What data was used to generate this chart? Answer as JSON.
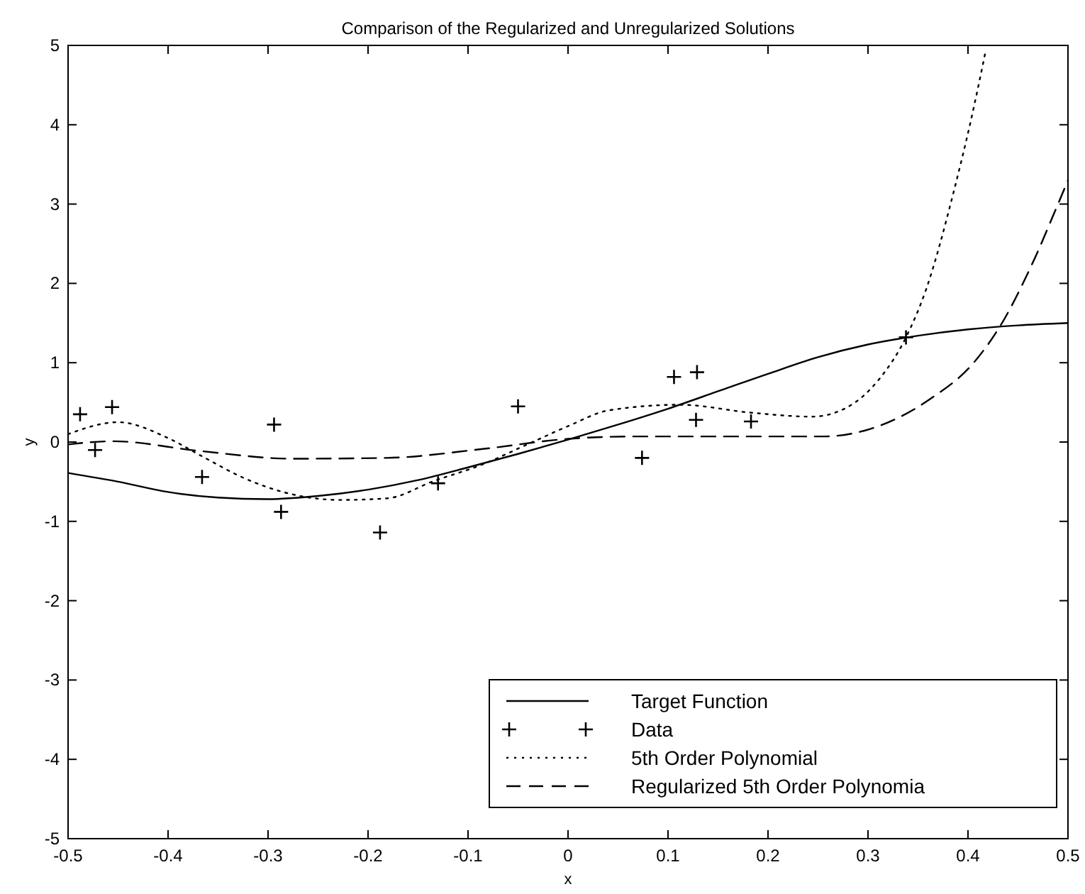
{
  "chart_data": {
    "type": "line",
    "title": "Comparison of the Regularized and Unregularized Solutions",
    "xlabel": "x",
    "ylabel": "y",
    "xlim": [
      -0.5,
      0.5
    ],
    "ylim": [
      -5,
      5
    ],
    "xticks": [
      -0.5,
      -0.4,
      -0.3,
      -0.2,
      -0.1,
      0,
      0.1,
      0.2,
      0.3,
      0.4,
      0.5
    ],
    "yticks": [
      -5,
      -4,
      -3,
      -2,
      -1,
      0,
      1,
      2,
      3,
      4,
      5
    ],
    "grid": false,
    "legend": "bottom right",
    "series": [
      {
        "name": "Target Function",
        "type": "line",
        "color": "#000000",
        "line_style": "solid",
        "marker": "none",
        "x": [
          -0.5,
          -0.45,
          -0.4,
          -0.35,
          -0.3,
          -0.25,
          -0.2,
          -0.15,
          -0.1,
          -0.05,
          0,
          0.05,
          0.1,
          0.15,
          0.2,
          0.25,
          0.3,
          0.35,
          0.4,
          0.45,
          0.5
        ],
        "values": [
          -0.39,
          -0.5,
          -0.63,
          -0.7,
          -0.72,
          -0.68,
          -0.6,
          -0.48,
          -0.32,
          -0.15,
          0.03,
          0.22,
          0.42,
          0.64,
          0.86,
          1.07,
          1.23,
          1.34,
          1.42,
          1.47,
          1.5
        ]
      },
      {
        "name": "Data",
        "type": "scatter",
        "color": "#000000",
        "marker": "cross",
        "x": [
          -0.488,
          -0.473,
          -0.456,
          -0.366,
          -0.294,
          -0.287,
          -0.188,
          -0.13,
          -0.05,
          0.074,
          0.106,
          0.129,
          0.128,
          0.183,
          0.338
        ],
        "values": [
          0.35,
          -0.1,
          0.44,
          -0.44,
          0.22,
          -0.88,
          -1.14,
          -0.52,
          0.45,
          -0.2,
          0.82,
          0.88,
          0.28,
          0.26,
          1.32
        ]
      },
      {
        "name": "5th Order Polynomial",
        "type": "line",
        "color": "#000000",
        "line_style": "dotted",
        "marker": "none",
        "x": [
          -0.5,
          -0.45,
          -0.4,
          -0.366,
          -0.323,
          -0.285,
          -0.228,
          -0.181,
          -0.134,
          -0.087,
          -0.039,
          0,
          0.041,
          0.112,
          0.183,
          0.244,
          0.278,
          0.311,
          0.338,
          0.358,
          0.386,
          0.403,
          0.418
        ],
        "values": [
          0.1,
          0.25,
          0.05,
          -0.18,
          -0.46,
          -0.63,
          -0.73,
          -0.71,
          -0.49,
          -0.29,
          -0.02,
          0.2,
          0.4,
          0.47,
          0.37,
          0.32,
          0.43,
          0.79,
          1.32,
          1.92,
          3.17,
          4.06,
          4.95
        ]
      },
      {
        "name": "Regularized 5th Order Polynomia",
        "type": "line",
        "color": "#000000",
        "line_style": "dashed",
        "marker": "none",
        "x": [
          -0.5,
          -0.455,
          -0.37,
          -0.276,
          -0.181,
          -0.087,
          0,
          0.065,
          0.16,
          0.254,
          0.301,
          0.363,
          0.405,
          0.434,
          0.464,
          0.49,
          0.5
        ],
        "values": [
          -0.03,
          0.01,
          -0.11,
          -0.21,
          -0.2,
          -0.09,
          0.04,
          0.07,
          0.07,
          0.07,
          0.16,
          0.55,
          0.99,
          1.5,
          2.24,
          3.0,
          3.3
        ]
      }
    ]
  }
}
